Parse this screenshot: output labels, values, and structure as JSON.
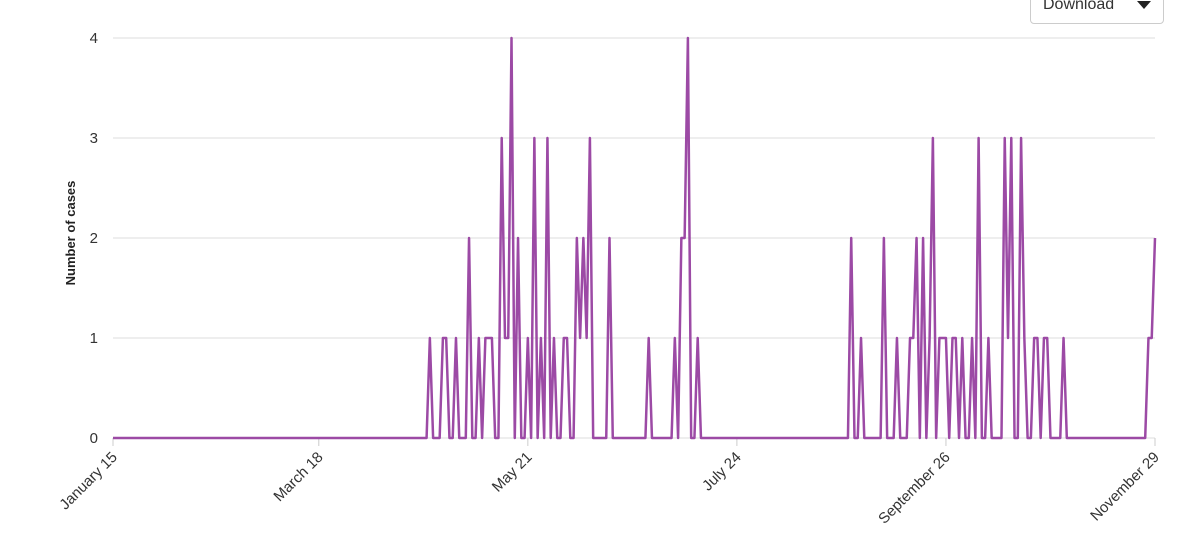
{
  "download": {
    "label": "Download",
    "icon": "caret-down-icon"
  },
  "chart_data": {
    "type": "line",
    "ylabel": "Number of cases",
    "xlabel": "",
    "ylim": [
      0,
      4
    ],
    "yticks": [
      0,
      1,
      2,
      3,
      4
    ],
    "xlim": [
      "2024-01-15",
      "2024-11-29"
    ],
    "xticks": [
      "January 15",
      "March 18",
      "May 21",
      "July 24",
      "September 26",
      "November 29"
    ],
    "xtick_dates": [
      "2024-01-15",
      "2024-03-18",
      "2024-05-21",
      "2024-07-24",
      "2024-09-26",
      "2024-11-29"
    ],
    "grid": true,
    "series": [
      {
        "color": "#9c4aa5",
        "points": [
          [
            "2024-01-15",
            0
          ],
          [
            "2024-04-20",
            0
          ],
          [
            "2024-04-21",
            1
          ],
          [
            "2024-04-22",
            0
          ],
          [
            "2024-04-24",
            0
          ],
          [
            "2024-04-25",
            1
          ],
          [
            "2024-04-26",
            1
          ],
          [
            "2024-04-27",
            0
          ],
          [
            "2024-04-28",
            0
          ],
          [
            "2024-04-29",
            1
          ],
          [
            "2024-04-30",
            0
          ],
          [
            "2024-05-02",
            0
          ],
          [
            "2024-05-03",
            2
          ],
          [
            "2024-05-04",
            0
          ],
          [
            "2024-05-05",
            0
          ],
          [
            "2024-05-06",
            1
          ],
          [
            "2024-05-07",
            0
          ],
          [
            "2024-05-08",
            1
          ],
          [
            "2024-05-10",
            1
          ],
          [
            "2024-05-11",
            0
          ],
          [
            "2024-05-12",
            0
          ],
          [
            "2024-05-13",
            3
          ],
          [
            "2024-05-14",
            1
          ],
          [
            "2024-05-15",
            1
          ],
          [
            "2024-05-16",
            4
          ],
          [
            "2024-05-17",
            0
          ],
          [
            "2024-05-18",
            2
          ],
          [
            "2024-05-19",
            0
          ],
          [
            "2024-05-20",
            0
          ],
          [
            "2024-05-21",
            1
          ],
          [
            "2024-05-22",
            0
          ],
          [
            "2024-05-23",
            3
          ],
          [
            "2024-05-24",
            0
          ],
          [
            "2024-05-25",
            1
          ],
          [
            "2024-05-26",
            0
          ],
          [
            "2024-05-27",
            3
          ],
          [
            "2024-05-28",
            0
          ],
          [
            "2024-05-29",
            1
          ],
          [
            "2024-05-30",
            0
          ],
          [
            "2024-05-31",
            0
          ],
          [
            "2024-06-01",
            1
          ],
          [
            "2024-06-02",
            1
          ],
          [
            "2024-06-03",
            0
          ],
          [
            "2024-06-04",
            0
          ],
          [
            "2024-06-05",
            2
          ],
          [
            "2024-06-06",
            1
          ],
          [
            "2024-06-07",
            2
          ],
          [
            "2024-06-08",
            1
          ],
          [
            "2024-06-09",
            3
          ],
          [
            "2024-06-10",
            0
          ],
          [
            "2024-06-14",
            0
          ],
          [
            "2024-06-15",
            2
          ],
          [
            "2024-06-16",
            0
          ],
          [
            "2024-06-26",
            0
          ],
          [
            "2024-06-27",
            1
          ],
          [
            "2024-06-28",
            0
          ],
          [
            "2024-07-04",
            0
          ],
          [
            "2024-07-05",
            1
          ],
          [
            "2024-07-06",
            0
          ],
          [
            "2024-07-07",
            2
          ],
          [
            "2024-07-08",
            2
          ],
          [
            "2024-07-09",
            4
          ],
          [
            "2024-07-10",
            0
          ],
          [
            "2024-07-11",
            0
          ],
          [
            "2024-07-12",
            1
          ],
          [
            "2024-07-13",
            0
          ],
          [
            "2024-08-27",
            0
          ],
          [
            "2024-08-28",
            2
          ],
          [
            "2024-08-29",
            0
          ],
          [
            "2024-08-30",
            0
          ],
          [
            "2024-08-31",
            1
          ],
          [
            "2024-09-01",
            0
          ],
          [
            "2024-09-06",
            0
          ],
          [
            "2024-09-07",
            2
          ],
          [
            "2024-09-08",
            0
          ],
          [
            "2024-09-10",
            0
          ],
          [
            "2024-09-11",
            1
          ],
          [
            "2024-09-12",
            0
          ],
          [
            "2024-09-14",
            0
          ],
          [
            "2024-09-15",
            1
          ],
          [
            "2024-09-16",
            1
          ],
          [
            "2024-09-17",
            2
          ],
          [
            "2024-09-18",
            0
          ],
          [
            "2024-09-19",
            2
          ],
          [
            "2024-09-20",
            0
          ],
          [
            "2024-09-21",
            1
          ],
          [
            "2024-09-22",
            3
          ],
          [
            "2024-09-23",
            0
          ],
          [
            "2024-09-24",
            1
          ],
          [
            "2024-09-25",
            1
          ],
          [
            "2024-09-26",
            1
          ],
          [
            "2024-09-27",
            0
          ],
          [
            "2024-09-28",
            1
          ],
          [
            "2024-09-29",
            1
          ],
          [
            "2024-09-30",
            0
          ],
          [
            "2024-10-01",
            1
          ],
          [
            "2024-10-02",
            0
          ],
          [
            "2024-10-03",
            0
          ],
          [
            "2024-10-04",
            1
          ],
          [
            "2024-10-05",
            0
          ],
          [
            "2024-10-06",
            3
          ],
          [
            "2024-10-07",
            0
          ],
          [
            "2024-10-08",
            0
          ],
          [
            "2024-10-09",
            1
          ],
          [
            "2024-10-10",
            0
          ],
          [
            "2024-10-13",
            0
          ],
          [
            "2024-10-14",
            3
          ],
          [
            "2024-10-15",
            1
          ],
          [
            "2024-10-16",
            3
          ],
          [
            "2024-10-17",
            0
          ],
          [
            "2024-10-18",
            0
          ],
          [
            "2024-10-19",
            3
          ],
          [
            "2024-10-20",
            1
          ],
          [
            "2024-10-21",
            0
          ],
          [
            "2024-10-22",
            0
          ],
          [
            "2024-10-23",
            1
          ],
          [
            "2024-10-24",
            1
          ],
          [
            "2024-10-25",
            0
          ],
          [
            "2024-10-26",
            1
          ],
          [
            "2024-10-27",
            1
          ],
          [
            "2024-10-28",
            0
          ],
          [
            "2024-10-31",
            0
          ],
          [
            "2024-11-01",
            1
          ],
          [
            "2024-11-02",
            0
          ],
          [
            "2024-11-26",
            0
          ],
          [
            "2024-11-27",
            1
          ],
          [
            "2024-11-28",
            1
          ],
          [
            "2024-11-29",
            2
          ]
        ]
      }
    ]
  }
}
